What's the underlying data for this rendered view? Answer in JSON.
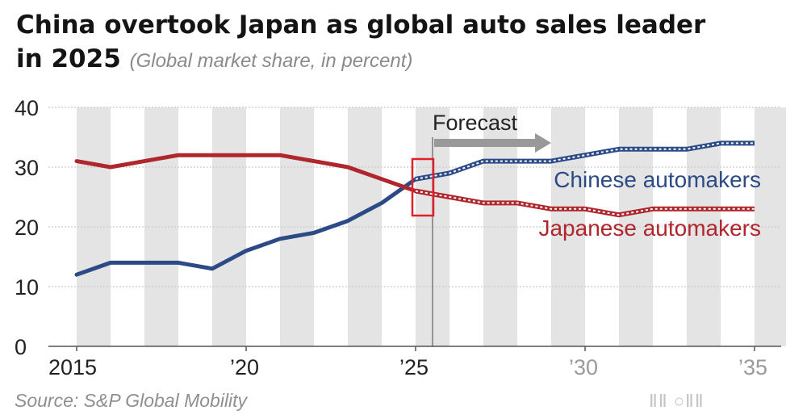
{
  "title_main": "China overtook Japan as global auto sales leader",
  "title_line2": "in 2025",
  "subtitle": "(Global market share, in percent)",
  "source": "Source: S&P Global Mobility",
  "watermark": "ⅡⅡ ○ⅡⅡ",
  "colors": {
    "chinese": "#2b4a86",
    "japanese": "#b0262d",
    "grid": "#c9c9c9",
    "band": "#e4e4e4",
    "highlight": "#e0202a",
    "arrow": "#999999"
  },
  "chart_data": {
    "type": "line",
    "x": [
      2015,
      2016,
      2017,
      2018,
      2019,
      2020,
      2021,
      2022,
      2023,
      2024,
      2025,
      2026,
      2027,
      2028,
      2029,
      2030,
      2031,
      2032,
      2033,
      2034,
      2035
    ],
    "forecast_start": 2025.5,
    "ylim": [
      0,
      40
    ],
    "yticks": [
      "0",
      "10",
      "20",
      "30",
      "40"
    ],
    "xticks": [
      {
        "x": 2015,
        "label": "2015"
      },
      {
        "x": 2020,
        "label": "’20"
      },
      {
        "x": 2025,
        "label": "’25"
      },
      {
        "x": 2030,
        "label": "’30"
      },
      {
        "x": 2035,
        "label": "’35"
      }
    ],
    "forecast_label": "Forecast",
    "highlight_year": 2025,
    "grid": true,
    "series": [
      {
        "name": "Chinese automakers",
        "color": "#2b4a86",
        "values": [
          12,
          14,
          14,
          14,
          13,
          16,
          18,
          19,
          21,
          24,
          28,
          29,
          31,
          31,
          31,
          32,
          33,
          33,
          33,
          34,
          34
        ]
      },
      {
        "name": "Japanese automakers",
        "color": "#b0262d",
        "values": [
          31,
          30,
          31,
          32,
          32,
          32,
          32,
          31,
          30,
          28,
          26,
          25,
          24,
          24,
          23,
          23,
          22,
          23,
          23,
          23,
          23
        ]
      }
    ]
  }
}
